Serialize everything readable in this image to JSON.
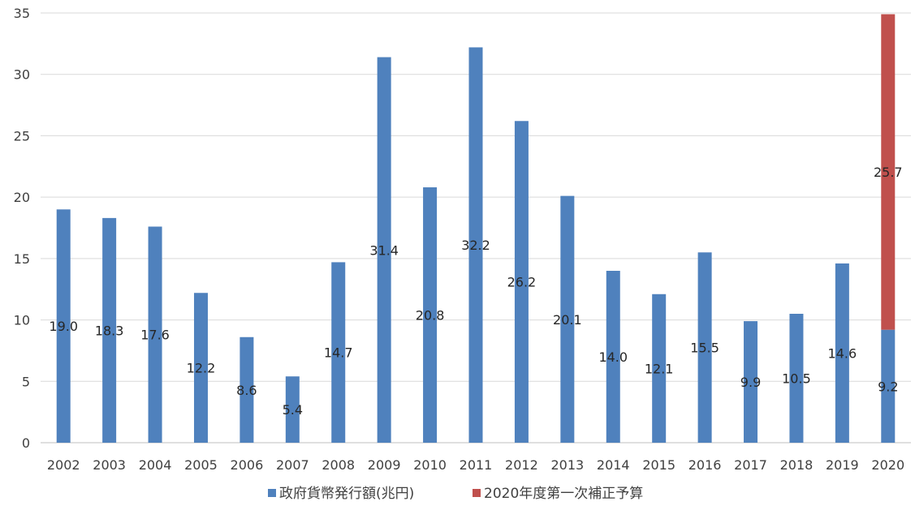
{
  "chart_data": {
    "type": "bar",
    "stacked": true,
    "categories": [
      "2002",
      "2003",
      "2004",
      "2005",
      "2006",
      "2007",
      "2008",
      "2009",
      "2010",
      "2011",
      "2012",
      "2013",
      "2014",
      "2015",
      "2016",
      "2017",
      "2018",
      "2019",
      "2020"
    ],
    "series": [
      {
        "name": "政府貨幣発行額(兆円)",
        "color": "#4f81bd",
        "values": [
          19.0,
          18.3,
          17.6,
          12.2,
          8.6,
          5.4,
          14.7,
          31.4,
          20.8,
          32.2,
          26.2,
          20.1,
          14.0,
          12.1,
          15.5,
          9.9,
          10.5,
          14.6,
          9.2
        ],
        "labels": [
          "19.0",
          "18.3",
          "17.6",
          "12.2",
          "8.6",
          "5.4",
          "14.7",
          "31.4",
          "20.8",
          "32.2",
          "26.2",
          "20.1",
          "14.0",
          "12.1",
          "15.5",
          "9.9",
          "10.5",
          "14.6",
          "9.2"
        ]
      },
      {
        "name": "2020年度第一次補正予算",
        "color": "#c0504d",
        "values": [
          null,
          null,
          null,
          null,
          null,
          null,
          null,
          null,
          null,
          null,
          null,
          null,
          null,
          null,
          null,
          null,
          null,
          null,
          25.7
        ],
        "labels": [
          "",
          "",
          "",
          "",
          "",
          "",
          "",
          "",
          "",
          "",
          "",
          "",
          "",
          "",
          "",
          "",
          "",
          "",
          "25.7"
        ]
      }
    ],
    "ylim": [
      0,
      35
    ],
    "yticks": [
      "0",
      "5",
      "10",
      "15",
      "20",
      "25",
      "30",
      "35"
    ],
    "grid": true,
    "legend_position": "bottom",
    "title": "",
    "xlabel": "",
    "ylabel": ""
  }
}
